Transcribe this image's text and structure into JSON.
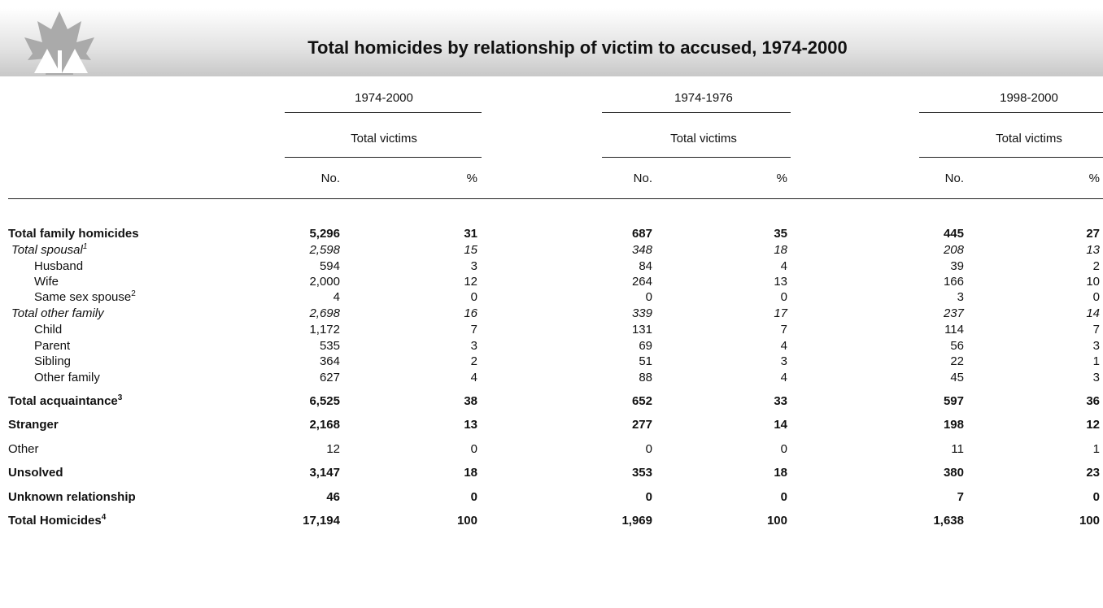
{
  "header": {
    "title": "Total homicides by relationship of victim to accused, 1974-2000"
  },
  "table": {
    "periods": [
      "1974-2000",
      "1974-1976",
      "1998-2000"
    ],
    "subheader": [
      "Total victims",
      "Total victims",
      "Total victims"
    ],
    "columns": [
      "No.",
      "%",
      "No.",
      "%",
      "No.",
      "%"
    ],
    "rows": [
      {
        "label": "Total family homicides",
        "style": "bold",
        "values": [
          "5,296",
          "31",
          "687",
          "35",
          "445",
          "27"
        ]
      },
      {
        "label": "Total spousal",
        "sup": "1",
        "style": "italic",
        "values": [
          "2,598",
          "15",
          "348",
          "18",
          "208",
          "13"
        ]
      },
      {
        "label": "Husband",
        "style": "indent",
        "values": [
          "594",
          "3",
          "84",
          "4",
          "39",
          "2"
        ]
      },
      {
        "label": "Wife",
        "style": "indent",
        "values": [
          "2,000",
          "12",
          "264",
          "13",
          "166",
          "10"
        ]
      },
      {
        "label": "Same sex spouse",
        "sup": "2",
        "style": "indent",
        "values": [
          "4",
          "0",
          "0",
          "0",
          "3",
          "0"
        ]
      },
      {
        "label": "Total other family",
        "style": "italic",
        "values": [
          "2,698",
          "16",
          "339",
          "17",
          "237",
          "14"
        ]
      },
      {
        "label": "Child",
        "style": "indent",
        "values": [
          "1,172",
          "7",
          "131",
          "7",
          "114",
          "7"
        ]
      },
      {
        "label": "Parent",
        "style": "indent",
        "values": [
          "535",
          "3",
          "69",
          "4",
          "56",
          "3"
        ]
      },
      {
        "label": "Sibling",
        "style": "indent",
        "values": [
          "364",
          "2",
          "51",
          "3",
          "22",
          "1"
        ]
      },
      {
        "label": "Other family",
        "style": "indent",
        "values": [
          "627",
          "4",
          "88",
          "4",
          "45",
          "3"
        ]
      },
      {
        "label": "Total acquaintance",
        "sup": "3",
        "style": "bold",
        "values": [
          "6,525",
          "38",
          "652",
          "33",
          "597",
          "36"
        ]
      },
      {
        "label": "Stranger",
        "style": "bold",
        "values": [
          "2,168",
          "13",
          "277",
          "14",
          "198",
          "12"
        ]
      },
      {
        "label": "Other",
        "style": "plain",
        "values": [
          "12",
          "0",
          "0",
          "0",
          "11",
          "1"
        ]
      },
      {
        "label": "Unsolved",
        "style": "bold",
        "values": [
          "3,147",
          "18",
          "353",
          "18",
          "380",
          "23"
        ]
      },
      {
        "label": "Unknown relationship",
        "style": "bold",
        "values": [
          "46",
          "0",
          "0",
          "0",
          "7",
          "0"
        ]
      },
      {
        "label": "Total Homicides",
        "sup": "4",
        "style": "bold",
        "values": [
          "17,194",
          "100",
          "1,969",
          "100",
          "1,638",
          "100"
        ]
      }
    ]
  }
}
